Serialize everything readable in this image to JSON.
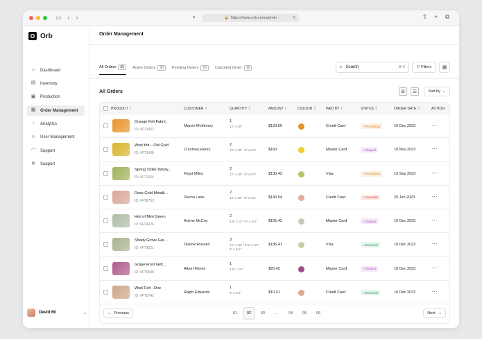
{
  "browser": {
    "url": "https://www.orb.com/admin",
    "colors": {
      "red": "#ff5f57",
      "yellow": "#febc2e",
      "green": "#28c840"
    }
  },
  "app": {
    "name": "Orb"
  },
  "sidebar": {
    "items": [
      {
        "label": "Dashboard",
        "icon": "home-icon",
        "active": false
      },
      {
        "label": "Inventory",
        "icon": "inventory-icon",
        "active": false
      },
      {
        "label": "Production",
        "icon": "production-icon",
        "active": false
      },
      {
        "label": "Order Management",
        "icon": "orders-icon",
        "active": true
      },
      {
        "label": "Analytics",
        "icon": "analytics-icon",
        "active": false
      },
      {
        "label": "User Management",
        "icon": "users-icon",
        "active": false
      },
      {
        "label": "Support",
        "icon": "headset-icon",
        "active": false
      },
      {
        "label": "Support",
        "icon": "gear-icon",
        "active": false
      }
    ],
    "user": {
      "name": "Devid Mi"
    }
  },
  "header": {
    "title": "Order Management"
  },
  "tabs": [
    {
      "label": "All Orders",
      "count": "55",
      "active": true
    },
    {
      "label": "Active Orders",
      "count": "30",
      "active": false
    },
    {
      "label": "Pending Orders",
      "count": "15",
      "active": false
    },
    {
      "label": "Canceled Order",
      "count": "10",
      "active": false
    }
  ],
  "search": {
    "label": "Search",
    "shortcut": "⌘ K"
  },
  "filters_label": "Filters",
  "section_title": "All Orders",
  "sort_label": "Sort by",
  "table": {
    "headers": [
      "PRODUCT",
      "CUSTOMER",
      "QUANTITY",
      "AMOUNT",
      "COLOUR",
      "PAID BY",
      "STATUS",
      "ORDER DATE",
      "ACTION"
    ],
    "rows": [
      {
        "name": "Orange Felt Fabric",
        "id": "ID: #FT3432",
        "thumb": "#e8932a",
        "customer": "Marvin McKinney",
        "qty": "1",
        "dims": "12\" x 18\"",
        "amount": "$120.50",
        "colour": "#e8932a",
        "paid_by": "Credit Card",
        "status": "Processing",
        "date": "10 Dec 2023"
      },
      {
        "name": "Wool felt – Old Gold",
        "id": "ID: #FT3438",
        "thumb": "#d7b52a",
        "customer": "Courtney Henry",
        "qty": "2",
        "dims": "12\" x 19\" / 6\" x 9.5\"",
        "amount": "$160",
        "colour": "#f0d02a",
        "paid_by": "Master Card",
        "status": "Shipped",
        "date": "10 Nov 2023"
      },
      {
        "name": "Spring Tickle Yellow...",
        "id": "ID: #FT1254",
        "thumb": "#9fb25a",
        "customer": "Floyd Miles",
        "qty": "2",
        "dims": "12\" x 19\" / 6\" x 9.5\"",
        "amount": "$130.42",
        "colour": "#b8c46a",
        "paid_by": "Visa",
        "status": "Processing",
        "date": "13 Sep 2023"
      },
      {
        "name": "Rose Gold Metalli...",
        "id": "ID: #FT6753",
        "thumb": "#d9a595",
        "customer": "Devon Lane",
        "qty": "2",
        "dims": "12\" x 19\" / 6\" x 9.5\"",
        "amount": "$140.54",
        "colour": "#dfac9c",
        "paid_by": "Credit Card",
        "status": "Canceled",
        "date": "20 Jun 2023"
      },
      {
        "name": "Hint of Mint Green",
        "id": "ID: #FT4326",
        "thumb": "#aebda6",
        "customer": "Arlene McCoy",
        "qty": "2",
        "dims": "9.5\" x 12\" / 6\" x 9.5\"",
        "amount": "$165.42",
        "colour": "#c3cbb9",
        "paid_by": "Master Card",
        "status": "Shipped",
        "date": "10 Dec 2023"
      },
      {
        "name": "Shady Grove Gre...",
        "id": "ID: #FT9621",
        "thumb": "#a6b38e",
        "customer": "Dianne Russell",
        "qty": "3",
        "dims": "12\" x 19\" / 9.5\" x 12\" / 6\" x 9.5\"",
        "amount": "$186.41",
        "colour": "#c6ccaa",
        "paid_by": "Visa",
        "status": "Delivered",
        "date": "10 Dec 2023"
      },
      {
        "name": "Grape Frost Glitt...",
        "id": "ID: #FT6548",
        "thumb": "#b05a8c",
        "customer": "Albert Flores",
        "qty": "1",
        "dims": "6.5\" x 12\"",
        "amount": "$20.42",
        "colour": "#9b4f86",
        "paid_by": "Master Card",
        "status": "Shipped",
        "date": "10 Dec 2023"
      },
      {
        "name": "Wool Felt - Doe",
        "id": "ID: #FT0742",
        "thumb": "#cfa68a",
        "customer": "Ralph Edwards",
        "qty": "1",
        "dims": "6\" x 9.5\"",
        "amount": "$10.21",
        "colour": "#dba996",
        "paid_by": "Credit Card",
        "status": "Delivered",
        "date": "10 Dec 2023"
      }
    ]
  },
  "status_colors": {
    "Processing": {
      "bg": "#fdf0e1",
      "fg": "#d9822b"
    },
    "Shipped": {
      "bg": "#f6e9fb",
      "fg": "#b757cf"
    },
    "Canceled": {
      "bg": "#fde8e6",
      "fg": "#d6453a"
    },
    "Delivered": {
      "bg": "#e4f6ec",
      "fg": "#2e9c5a"
    }
  },
  "pagination": {
    "prev": "Previous",
    "next": "Next",
    "pages": [
      "01",
      "02",
      "03",
      "...",
      "04",
      "05",
      "06"
    ],
    "current": "02"
  }
}
